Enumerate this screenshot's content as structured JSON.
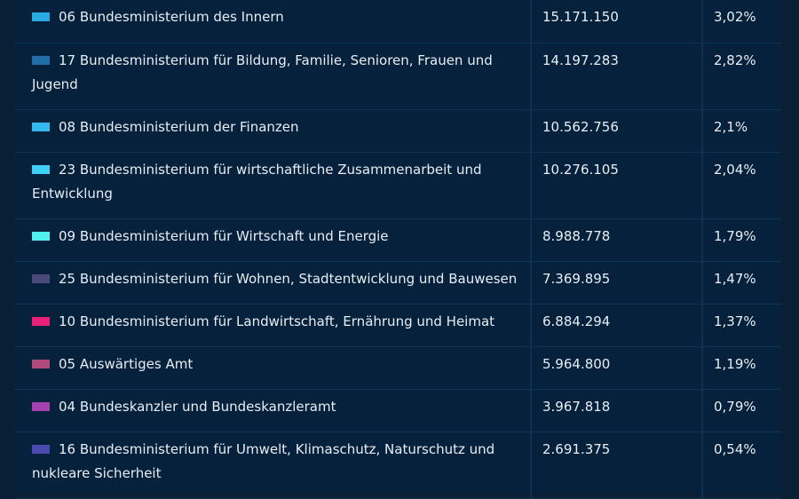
{
  "rows": [
    {
      "name": "06 Bundesministerium des Innern",
      "amount": "15.171.150",
      "share": "3,02%",
      "color": "#29abe2"
    },
    {
      "name": "17 Bundesministerium für Bildung, Familie, Senioren, Frauen und Jugend",
      "amount": "14.197.283",
      "share": "2,82%",
      "color": "#1f6fab"
    },
    {
      "name": "08 Bundesministerium der Finanzen",
      "amount": "10.562.756",
      "share": "2,1%",
      "color": "#33b8f0"
    },
    {
      "name": "23 Bundesministerium für wirtschaftliche Zusammenarbeit und Entwicklung",
      "amount": "10.276.105",
      "share": "2,04%",
      "color": "#3fd0f5"
    },
    {
      "name": "09 Bundesministerium für Wirtschaft und Energie",
      "amount": "8.988.778",
      "share": "1,79%",
      "color": "#4ff0ee"
    },
    {
      "name": "25 Bundesministerium für Wohnen, Stadtentwicklung und Bauwesen",
      "amount": "7.369.895",
      "share": "1,47%",
      "color": "#4a4a7a"
    },
    {
      "name": "10 Bundesministerium für Landwirtschaft, Ernährung und Heimat",
      "amount": "6.884.294",
      "share": "1,37%",
      "color": "#e8207a"
    },
    {
      "name": "05 Auswärtiges Amt",
      "amount": "5.964.800",
      "share": "1,19%",
      "color": "#b04a7a"
    },
    {
      "name": "04 Bundeskanzler und Bundeskanzleramt",
      "amount": "3.967.818",
      "share": "0,79%",
      "color": "#a542b0"
    },
    {
      "name": "16 Bundesministerium für Umwelt, Klimaschutz, Naturschutz und nukleare Sicherheit",
      "amount": "2.691.375",
      "share": "0,54%",
      "color": "#4a4ab0"
    }
  ]
}
